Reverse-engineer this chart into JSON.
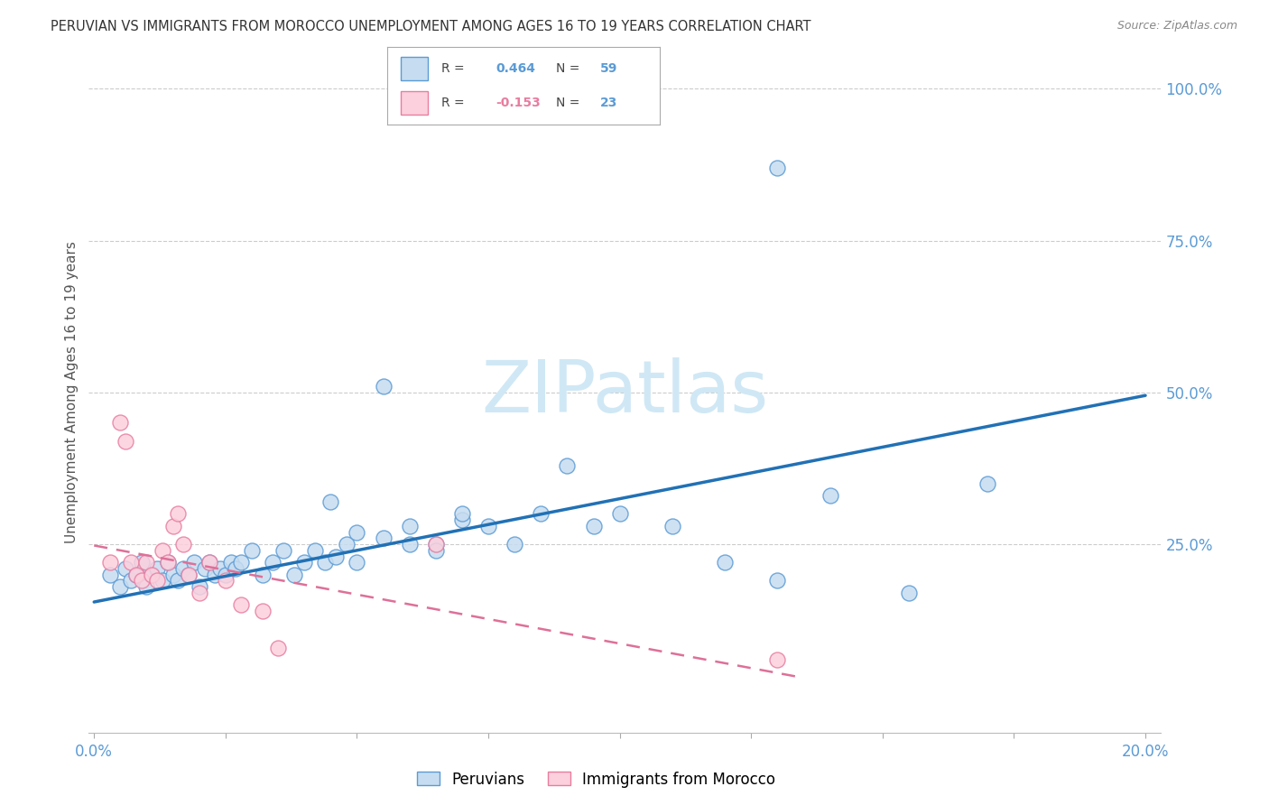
{
  "title": "PERUVIAN VS IMMIGRANTS FROM MOROCCO UNEMPLOYMENT AMONG AGES 16 TO 19 YEARS CORRELATION CHART",
  "source": "Source: ZipAtlas.com",
  "ylabel": "Unemployment Among Ages 16 to 19 years",
  "legend_blue_r": "0.464",
  "legend_blue_n": "59",
  "legend_pink_r": "-0.153",
  "legend_pink_n": "23",
  "legend_blue_label": "Peruvians",
  "legend_pink_label": "Immigrants from Morocco",
  "blue_fill_color": "#c6dcf0",
  "pink_fill_color": "#fcd0dd",
  "blue_edge_color": "#5b9bd5",
  "pink_edge_color": "#e87da0",
  "blue_line_color": "#2171b5",
  "pink_line_color": "#de7098",
  "text_color": "#5b9bd5",
  "watermark_color": "#d0e8f5",
  "blue_scatter_x": [
    0.003,
    0.005,
    0.006,
    0.007,
    0.008,
    0.009,
    0.01,
    0.011,
    0.012,
    0.013,
    0.014,
    0.015,
    0.016,
    0.017,
    0.018,
    0.019,
    0.02,
    0.021,
    0.022,
    0.023,
    0.024,
    0.025,
    0.026,
    0.027,
    0.028,
    0.03,
    0.032,
    0.034,
    0.036,
    0.038,
    0.04,
    0.042,
    0.044,
    0.046,
    0.048,
    0.05,
    0.055,
    0.06,
    0.065,
    0.07,
    0.075,
    0.08,
    0.085,
    0.09,
    0.095,
    0.1,
    0.11,
    0.12,
    0.13,
    0.14,
    0.045,
    0.05,
    0.055,
    0.06,
    0.065,
    0.07,
    0.155,
    0.17,
    0.13
  ],
  "blue_scatter_y": [
    0.2,
    0.18,
    0.21,
    0.19,
    0.2,
    0.22,
    0.18,
    0.2,
    0.21,
    0.19,
    0.22,
    0.2,
    0.19,
    0.21,
    0.2,
    0.22,
    0.18,
    0.21,
    0.22,
    0.2,
    0.21,
    0.2,
    0.22,
    0.21,
    0.22,
    0.24,
    0.2,
    0.22,
    0.24,
    0.2,
    0.22,
    0.24,
    0.22,
    0.23,
    0.25,
    0.27,
    0.26,
    0.28,
    0.25,
    0.29,
    0.28,
    0.25,
    0.3,
    0.38,
    0.28,
    0.3,
    0.28,
    0.22,
    0.19,
    0.33,
    0.32,
    0.22,
    0.51,
    0.25,
    0.24,
    0.3,
    0.17,
    0.35,
    0.87
  ],
  "pink_scatter_x": [
    0.003,
    0.005,
    0.006,
    0.007,
    0.008,
    0.009,
    0.01,
    0.011,
    0.012,
    0.013,
    0.014,
    0.015,
    0.016,
    0.017,
    0.018,
    0.02,
    0.022,
    0.025,
    0.028,
    0.032,
    0.035,
    0.065,
    0.13
  ],
  "pink_scatter_y": [
    0.22,
    0.45,
    0.42,
    0.22,
    0.2,
    0.19,
    0.22,
    0.2,
    0.19,
    0.24,
    0.22,
    0.28,
    0.3,
    0.25,
    0.2,
    0.17,
    0.22,
    0.19,
    0.15,
    0.14,
    0.08,
    0.25,
    0.06
  ],
  "blue_trend_x": [
    0.0,
    0.2
  ],
  "blue_trend_y": [
    0.155,
    0.495
  ],
  "pink_trend_x": [
    0.0,
    0.135
  ],
  "pink_trend_y": [
    0.248,
    0.03
  ],
  "xlim": [
    -0.001,
    0.203
  ],
  "ylim": [
    -0.06,
    1.06
  ],
  "right_ytick_vals": [
    0.0,
    0.25,
    0.5,
    0.75,
    1.0
  ],
  "right_yticklabels": [
    "",
    "25.0%",
    "50.0%",
    "75.0%",
    "100.0%"
  ],
  "xtick_vals": [
    0.0,
    0.025,
    0.05,
    0.075,
    0.1,
    0.125,
    0.15,
    0.175,
    0.2
  ]
}
